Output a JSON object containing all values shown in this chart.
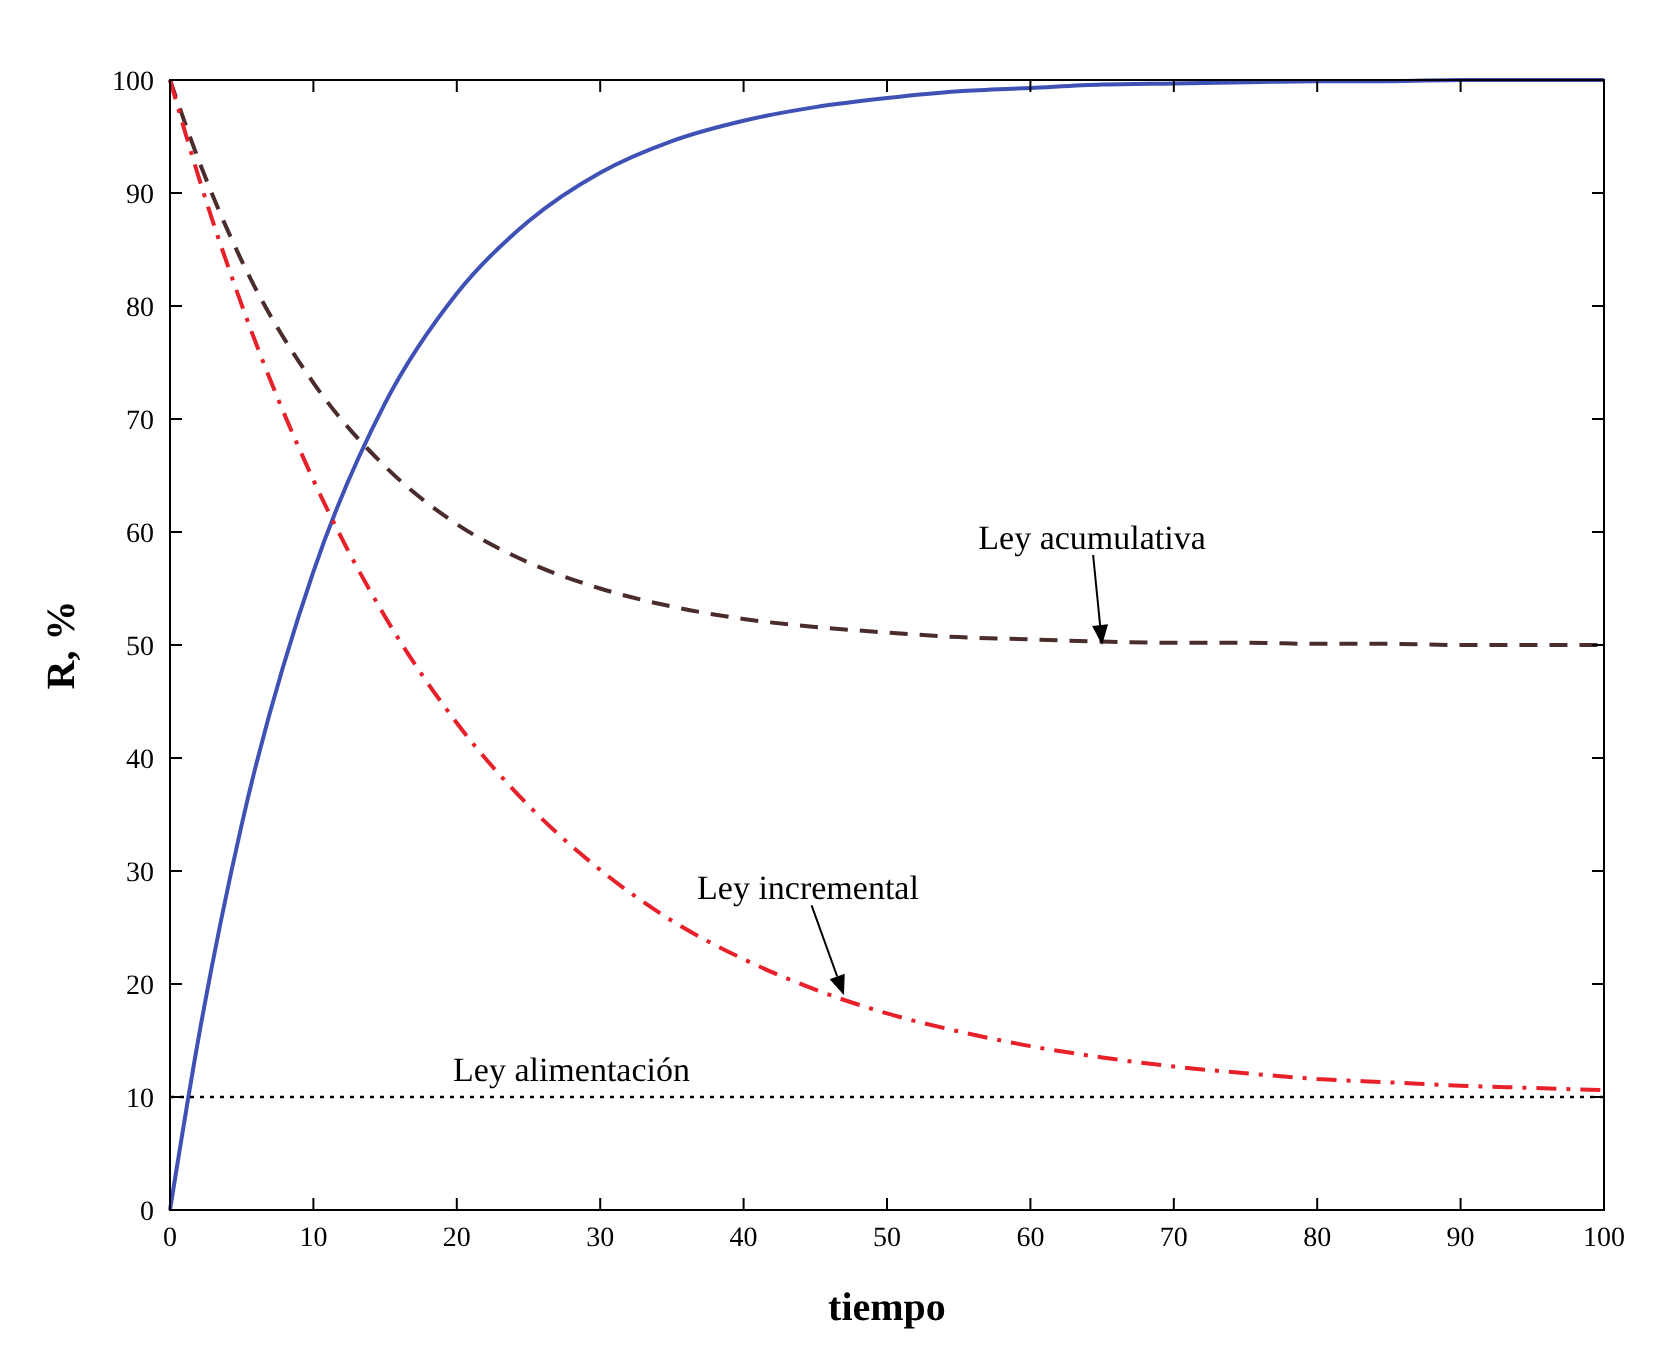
{
  "chart_data": {
    "type": "line",
    "xlabel": "tiempo",
    "ylabel": "R, %",
    "x": [
      0,
      2,
      5,
      10,
      15,
      20,
      25,
      30,
      35,
      40,
      45,
      50,
      55,
      60,
      65,
      70,
      75,
      80,
      85,
      90,
      95,
      100
    ],
    "series": [
      {
        "color": "#3f51b5",
        "line_style": "solid",
        "values": [
          0,
          15.3,
          34.1,
          56.5,
          71.4,
          81.1,
          87.5,
          91.8,
          94.6,
          96.4,
          97.6,
          98.4,
          99.0,
          99.3,
          99.6,
          99.7,
          99.8,
          99.9,
          99.9,
          100,
          100,
          100
        ]
      },
      {
        "color": "#4a2c2c",
        "line_style": "dashed",
        "values": [
          100,
          92.9,
          84.0,
          73.2,
          65.8,
          60.7,
          57.3,
          55.0,
          53.4,
          52.3,
          51.6,
          51.1,
          50.7,
          50.5,
          50.3,
          50.2,
          50.2,
          50.1,
          50.1,
          50.0,
          50.0,
          50.0
        ]
      },
      {
        "color": "#e8202a",
        "line_style": "dashdot",
        "values": [
          100,
          91.4,
          80.1,
          64.6,
          52.5,
          43.1,
          35.8,
          30.1,
          25.6,
          22.2,
          19.5,
          17.4,
          15.8,
          14.5,
          13.5,
          12.7,
          12.1,
          11.6,
          11.3,
          11.0,
          10.8,
          10.6
        ]
      },
      {
        "color": "#000000",
        "line_style": "dotted",
        "values": [
          10,
          10,
          10,
          10,
          10,
          10,
          10,
          10,
          10,
          10,
          10,
          10,
          10,
          10,
          10,
          10,
          10,
          10,
          10,
          10,
          10,
          10
        ]
      }
    ],
    "xlim": [
      0,
      100
    ],
    "ylim": [
      0,
      100
    ],
    "xticks": [
      0,
      10,
      20,
      30,
      40,
      50,
      60,
      70,
      80,
      90,
      100
    ],
    "yticks": [
      0,
      10,
      20,
      30,
      40,
      50,
      60,
      70,
      80,
      90,
      100
    ],
    "grid": false,
    "marker": "none",
    "annotations": [
      {
        "text": "Ley acumulativa",
        "x": 65,
        "y": 50
      },
      {
        "text": "Ley incremental",
        "x": 47,
        "y": 19
      },
      {
        "text": "Ley alimentación",
        "x": 28,
        "y": 10
      }
    ]
  }
}
